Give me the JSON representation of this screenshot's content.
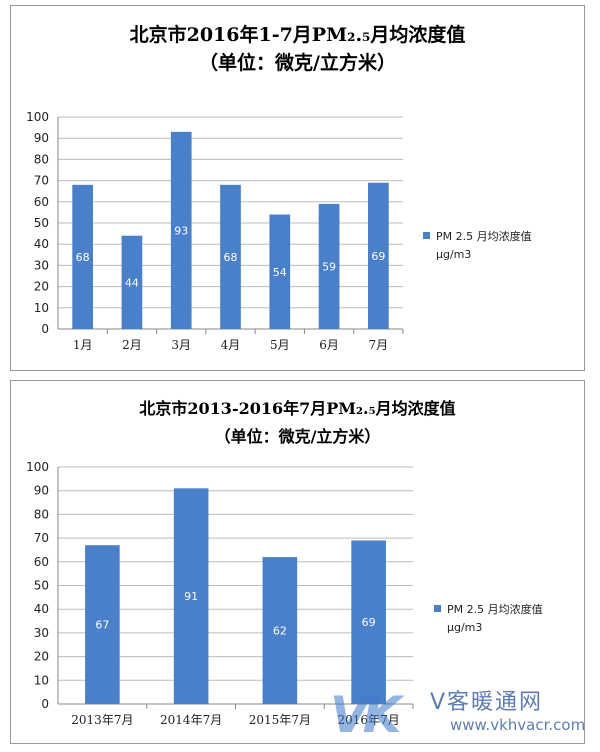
{
  "colors": {
    "bar": "#4a7fc9",
    "grid": "#bdbdbd",
    "axis": "#888888",
    "text": "#222222",
    "label": "#ffffff"
  },
  "chart_data": [
    {
      "type": "bar",
      "title": "北京市2016年1-7月PM₂.₅月均浓度值",
      "subtitle": "（单位：微克/立方米）",
      "categories": [
        "1月",
        "2月",
        "3月",
        "4月",
        "5月",
        "6月",
        "7月"
      ],
      "series": [
        {
          "name": "PM 2.5 月均浓度值",
          "values": [
            68,
            44,
            93,
            68,
            54,
            59,
            69
          ]
        }
      ],
      "legend_unit": "μg/m3",
      "ylim": [
        0,
        100
      ],
      "yticks": [
        0,
        10,
        20,
        30,
        40,
        50,
        60,
        70,
        80,
        90,
        100
      ],
      "grid": true,
      "legend_position": "right"
    },
    {
      "type": "bar",
      "title": "北京市2013-2016年7月PM₂.₅月均浓度值",
      "subtitle": "（单位：微克/立方米）",
      "categories": [
        "2013年7月",
        "2014年7月",
        "2015年7月",
        "2016年7月"
      ],
      "series": [
        {
          "name": "PM 2.5 月均浓度值",
          "values": [
            67,
            91,
            62,
            69
          ]
        }
      ],
      "legend_unit": "μg/m3",
      "ylim": [
        0,
        100
      ],
      "yticks": [
        0,
        10,
        20,
        30,
        40,
        50,
        60,
        70,
        80,
        90,
        100
      ],
      "grid": true,
      "legend_position": "right"
    }
  ],
  "watermark": {
    "logo": "VK",
    "name": "V客暖通网",
    "url": "www.vkhvacr.com"
  }
}
